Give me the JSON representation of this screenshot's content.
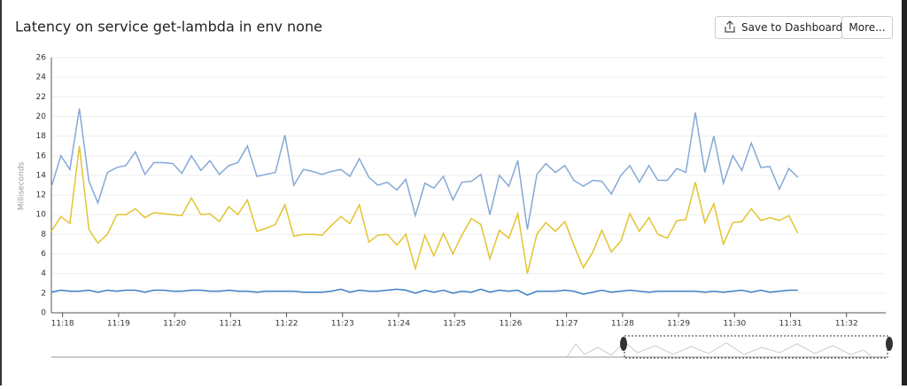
{
  "header": {
    "title": "Latency on service get-lambda in env none",
    "buttons": [
      "Save to Dashboard",
      "More..."
    ]
  },
  "chart_data": {
    "type": "line",
    "y_label": "Milliseconds",
    "grid": true,
    "ylim": [
      0,
      26
    ],
    "yticks": [
      0,
      2,
      4,
      6,
      8,
      10,
      12,
      14,
      16,
      18,
      20,
      22,
      24,
      26
    ],
    "xlim": [
      17.8,
      32.7
    ],
    "xticks": [
      {
        "value": 18,
        "label": "11:18"
      },
      {
        "value": 19,
        "label": "11:19"
      },
      {
        "value": 20,
        "label": "11:20"
      },
      {
        "value": 21,
        "label": "11:21"
      },
      {
        "value": 22,
        "label": "11:22"
      },
      {
        "value": 23,
        "label": "11:23"
      },
      {
        "value": 24,
        "label": "11:24"
      },
      {
        "value": 25,
        "label": "11:25"
      },
      {
        "value": 26,
        "label": "11:26"
      },
      {
        "value": 27,
        "label": "11:27"
      },
      {
        "value": 28,
        "label": "11:28"
      },
      {
        "value": 29,
        "label": "11:29"
      },
      {
        "value": 30,
        "label": "11:30"
      },
      {
        "value": 31,
        "label": "11:31"
      },
      {
        "value": 32,
        "label": "11:32"
      }
    ],
    "x": [
      17.8,
      17.97,
      18.13,
      18.3,
      18.47,
      18.63,
      18.8,
      18.97,
      19.13,
      19.3,
      19.47,
      19.63,
      19.8,
      19.97,
      20.13,
      20.3,
      20.47,
      20.63,
      20.8,
      20.97,
      21.13,
      21.3,
      21.47,
      21.63,
      21.8,
      21.97,
      22.13,
      22.3,
      22.47,
      22.63,
      22.8,
      22.97,
      23.13,
      23.3,
      23.47,
      23.63,
      23.8,
      23.97,
      24.13,
      24.3,
      24.47,
      24.63,
      24.8,
      24.97,
      25.13,
      25.3,
      25.47,
      25.63,
      25.8,
      25.97,
      26.13,
      26.3,
      26.47,
      26.63,
      26.8,
      26.97,
      27.13,
      27.3,
      27.47,
      27.63,
      27.8,
      27.97,
      28.13,
      28.3,
      28.47,
      28.63,
      28.8,
      28.97,
      29.13,
      29.3,
      29.47,
      29.63,
      29.8,
      29.97,
      30.13,
      30.3,
      30.47,
      30.63,
      30.8,
      30.97,
      31.13
    ],
    "series": [
      {
        "color": "#86a9d6",
        "values": [
          12.8,
          16,
          14.6,
          20.8,
          13.4,
          11.2,
          14.3,
          14.8,
          15,
          16.4,
          14.1,
          15.3,
          15.3,
          15.2,
          14.2,
          16,
          14.5,
          15.5,
          14.1,
          15,
          15.3,
          17,
          13.9,
          14.1,
          14.3,
          18.1,
          13,
          14.6,
          14.4,
          14.1,
          14.4,
          14.6,
          13.9,
          15.7,
          13.8,
          13,
          13.3,
          12.5,
          13.6,
          9.9,
          13.2,
          12.7,
          13.9,
          11.5,
          13.3,
          13.4,
          14.1,
          10,
          14,
          12.9,
          15.5,
          8.5,
          14.1,
          15.2,
          14.3,
          15,
          13.5,
          12.9,
          13.5,
          13.4,
          12.1,
          14,
          15,
          13.3,
          15,
          13.5,
          13.5,
          14.7,
          14.3,
          20.4,
          14.3,
          18,
          13.2,
          16,
          14.5,
          17.3,
          14.8,
          14.9,
          12.6,
          14.7,
          13.8
        ]
      },
      {
        "color": "#e3c431",
        "values": [
          8.3,
          9.8,
          9.1,
          17,
          8.5,
          7.1,
          8,
          10,
          10,
          10.6,
          9.7,
          10.2,
          10.1,
          10,
          9.9,
          11.7,
          10,
          10.1,
          9.3,
          10.8,
          10,
          11.5,
          8.3,
          8.6,
          9,
          11,
          7.8,
          8,
          8,
          7.9,
          8.9,
          9.8,
          9.1,
          11,
          7.2,
          7.9,
          8,
          6.9,
          8,
          4.5,
          7.9,
          5.8,
          8.1,
          6,
          7.9,
          9.6,
          9,
          5.5,
          8.4,
          7.6,
          10.1,
          4,
          8,
          9.2,
          8.3,
          9.3,
          6.9,
          4.6,
          6.2,
          8.4,
          6.2,
          7.3,
          10.1,
          8.3,
          9.7,
          8,
          7.6,
          9.4,
          9.5,
          13.3,
          9.2,
          11.1,
          7,
          9.2,
          9.3,
          10.6,
          9.4,
          9.7,
          9.4,
          9.9,
          8.1
        ]
      },
      {
        "color": "#3b7fc4",
        "values": [
          2.1,
          2.3,
          2.2,
          2.2,
          2.3,
          2.1,
          2.3,
          2.2,
          2.3,
          2.3,
          2.1,
          2.3,
          2.3,
          2.2,
          2.2,
          2.3,
          2.3,
          2.2,
          2.2,
          2.3,
          2.2,
          2.2,
          2.1,
          2.2,
          2.2,
          2.2,
          2.2,
          2.1,
          2.1,
          2.1,
          2.2,
          2.4,
          2.1,
          2.3,
          2.2,
          2.2,
          2.3,
          2.4,
          2.3,
          2,
          2.3,
          2.1,
          2.3,
          2,
          2.2,
          2.1,
          2.4,
          2.1,
          2.3,
          2.2,
          2.3,
          1.8,
          2.2,
          2.2,
          2.2,
          2.3,
          2.2,
          1.9,
          2.1,
          2.3,
          2.1,
          2.2,
          2.3,
          2.2,
          2.1,
          2.2,
          2.2,
          2.2,
          2.2,
          2.2,
          2.1,
          2.2,
          2.1,
          2.2,
          2.3,
          2.1,
          2.3,
          2.1,
          2.2,
          2.3,
          2.3
        ]
      }
    ]
  }
}
